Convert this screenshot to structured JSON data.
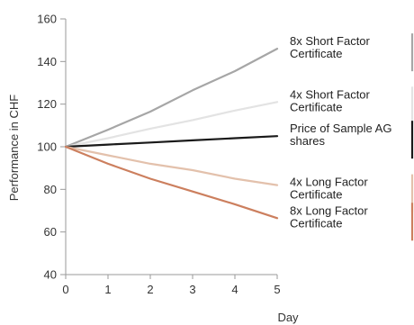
{
  "chart_data": {
    "type": "line",
    "title": "",
    "xlabel": "Day",
    "ylabel": "Performance in CHF",
    "x": [
      0,
      1,
      2,
      3,
      4,
      5
    ],
    "xlim": [
      0,
      5
    ],
    "ylim": [
      40,
      160
    ],
    "yticks": [
      40,
      60,
      80,
      100,
      120,
      140,
      160
    ],
    "xticks": [
      0,
      1,
      2,
      3,
      4,
      5
    ],
    "grid": false,
    "legend_position": "right",
    "series": [
      {
        "name": "8x Short Factor Certificate",
        "label_lines": [
          "8x Short Factor",
          "Certificate"
        ],
        "color": "#a6a6a6",
        "values": [
          100,
          108,
          116.5,
          126.5,
          135.5,
          146
        ]
      },
      {
        "name": "4x Short Factor Certificate",
        "label_lines": [
          "4x Short Factor",
          "Certificate"
        ],
        "color": "#e3e3e3",
        "values": [
          100,
          104,
          108.5,
          112.5,
          117,
          121
        ]
      },
      {
        "name": "Price of Sample AG shares",
        "label_lines": [
          "Price of Sample AG",
          "shares"
        ],
        "color": "#1a1a1a",
        "values": [
          100,
          101,
          102,
          103,
          104,
          105
        ]
      },
      {
        "name": "4x Long Factor Certificate",
        "label_lines": [
          "4x Long Factor",
          "Certificate"
        ],
        "color": "#e3c1ac",
        "values": [
          100,
          96,
          92,
          89,
          85,
          82
        ]
      },
      {
        "name": "8x Long Factor Certificate",
        "label_lines": [
          "8x Long Factor",
          "Certificate"
        ],
        "color": "#cc7f5e",
        "values": [
          100,
          92,
          85,
          79,
          73,
          66.5
        ]
      }
    ]
  }
}
